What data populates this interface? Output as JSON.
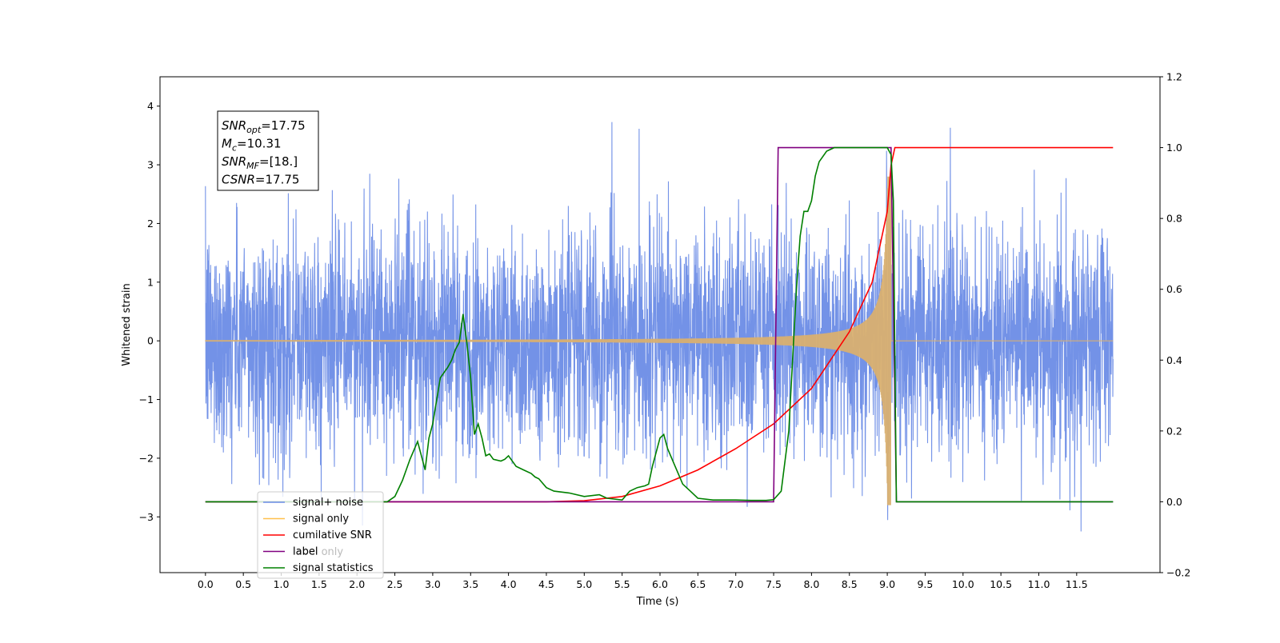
{
  "chart_data": {
    "type": "line",
    "xlabel": "Time (s)",
    "ylabel": "Whitened strain",
    "xlim": [
      -0.6,
      12.6
    ],
    "ylim": [
      -3.95,
      4.5
    ],
    "y2lim": [
      -0.2,
      1.2
    ],
    "x_ticks": [
      0.0,
      0.5,
      1.0,
      1.5,
      2.0,
      2.5,
      3.0,
      3.5,
      4.0,
      4.5,
      5.0,
      5.5,
      6.0,
      6.5,
      7.0,
      7.5,
      8.0,
      8.5,
      9.0,
      9.5,
      10.0,
      10.5,
      11.0,
      11.5
    ],
    "x_tick_labels": [
      "0.0",
      "0.5",
      "1.0",
      "1.5",
      "2.0",
      "2.5",
      "3.0",
      "3.5",
      "4.0",
      "4.5",
      "5.0",
      "5.5",
      "6.0",
      "6.5",
      "7.0",
      "7.5",
      "8.0",
      "8.5",
      "9.0",
      "9.5",
      "10.0",
      "10.5",
      "11.0",
      "11.5"
    ],
    "y_ticks": [
      -3,
      -2,
      -1,
      0,
      1,
      2,
      3,
      4
    ],
    "y_tick_labels": [
      "−3",
      "−2",
      "−1",
      "0",
      "1",
      "2",
      "3",
      "4"
    ],
    "y2_ticks": [
      -0.2,
      0.0,
      0.2,
      0.4,
      0.6,
      0.8,
      1.0,
      1.2
    ],
    "y2_tick_labels": [
      "−0.2",
      "0.0",
      "0.2",
      "0.4",
      "0.6",
      "0.8",
      "1.0",
      "1.2"
    ],
    "annotation": {
      "lines": [
        {
          "sym": "SNR",
          "sub": "opt",
          "val": "=17.75"
        },
        {
          "sym": "M",
          "sub": "c",
          "val": "=10.31"
        },
        {
          "sym": "SNR",
          "sub": "MF",
          "val": "=[18.]"
        },
        {
          "sym": "CSNR",
          "sub": "",
          "val": "=17.75"
        }
      ]
    },
    "legend": {
      "placement": "lower-left",
      "items": [
        {
          "label": "signal+ noise",
          "color": "#6b8ce6"
        },
        {
          "label": "signal only",
          "color": "#ffc04d"
        },
        {
          "label": "cumilative SNR",
          "color": "#ff0000"
        },
        {
          "label": "label",
          "color": "#800080"
        },
        {
          "label": "signal statistics",
          "color": "#008000"
        }
      ],
      "hidden_text": "label only"
    },
    "series": [
      {
        "name": "signal+ noise",
        "axis": "left",
        "color": "#6b8ce6",
        "description": "Gaussian noise envelope roughly ±2.5, peaks to ±3.5",
        "t_range": [
          0.0,
          11.98
        ]
      },
      {
        "name": "signal only",
        "axis": "left",
        "color": "#d9b070",
        "description": "chirp, amplitude grows toward merger at t≈9.05 s, peak ~±2.8",
        "merger_time": 9.05
      },
      {
        "name": "cumilative SNR",
        "axis": "right",
        "color": "#ff0000",
        "x": [
          0.0,
          4.5,
          5.0,
          5.5,
          6.0,
          6.5,
          7.0,
          7.5,
          8.0,
          8.5,
          8.8,
          9.0,
          9.05,
          9.1,
          11.98
        ],
        "values": [
          0.0,
          0.0,
          0.003,
          0.015,
          0.045,
          0.09,
          0.15,
          0.22,
          0.32,
          0.48,
          0.62,
          0.82,
          0.95,
          1.0,
          1.0
        ]
      },
      {
        "name": "label",
        "axis": "right",
        "color": "#800080",
        "x": [
          0.0,
          7.5,
          7.56,
          9.05,
          9.12,
          11.98
        ],
        "values": [
          0.0,
          0.0,
          1.0,
          1.0,
          0.0,
          0.0
        ]
      },
      {
        "name": "signal statistics",
        "axis": "right",
        "color": "#008000",
        "x": [
          0.0,
          2.2,
          2.4,
          2.5,
          2.6,
          2.7,
          2.8,
          2.9,
          2.95,
          3.0,
          3.1,
          3.2,
          3.25,
          3.3,
          3.35,
          3.4,
          3.45,
          3.5,
          3.55,
          3.6,
          3.65,
          3.7,
          3.75,
          3.8,
          3.9,
          3.95,
          4.0,
          4.1,
          4.2,
          4.3,
          4.35,
          4.4,
          4.5,
          4.6,
          4.8,
          5.0,
          5.2,
          5.3,
          5.5,
          5.6,
          5.7,
          5.8,
          5.85,
          5.9,
          6.0,
          6.05,
          6.1,
          6.2,
          6.3,
          6.4,
          6.5,
          6.7,
          7.0,
          7.2,
          7.4,
          7.5,
          7.6,
          7.7,
          7.75,
          7.8,
          7.85,
          7.9,
          7.95,
          8.0,
          8.05,
          8.1,
          8.2,
          8.3,
          8.4,
          8.5,
          8.6,
          8.8,
          9.0,
          9.05,
          9.08,
          9.1,
          9.12,
          11.98
        ],
        "values": [
          0.0,
          0.0,
          0.0,
          0.015,
          0.06,
          0.12,
          0.17,
          0.09,
          0.18,
          0.22,
          0.35,
          0.38,
          0.4,
          0.43,
          0.45,
          0.53,
          0.45,
          0.35,
          0.19,
          0.22,
          0.18,
          0.13,
          0.135,
          0.12,
          0.115,
          0.12,
          0.13,
          0.1,
          0.09,
          0.08,
          0.07,
          0.065,
          0.04,
          0.03,
          0.025,
          0.015,
          0.02,
          0.01,
          0.005,
          0.03,
          0.04,
          0.045,
          0.05,
          0.1,
          0.18,
          0.19,
          0.15,
          0.1,
          0.05,
          0.03,
          0.01,
          0.005,
          0.005,
          0.004,
          0.004,
          0.006,
          0.03,
          0.2,
          0.4,
          0.6,
          0.75,
          0.82,
          0.82,
          0.85,
          0.92,
          0.96,
          0.99,
          1.0,
          1.0,
          1.0,
          1.0,
          1.0,
          1.0,
          0.98,
          0.85,
          0.4,
          0.0,
          0.0
        ]
      }
    ]
  }
}
